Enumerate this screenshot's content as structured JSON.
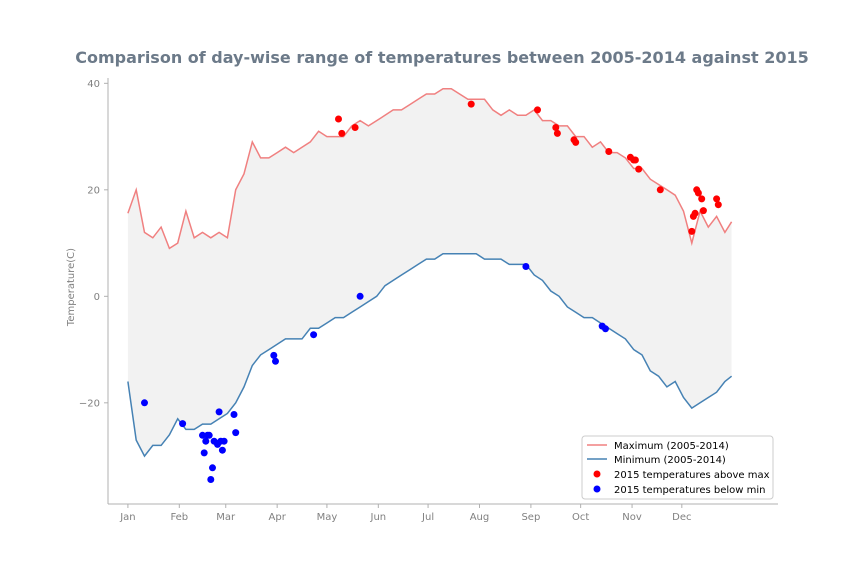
{
  "chart_data": {
    "type": "line",
    "title": "Comparison of day-wise range of temperatures between 2005-2014 against 2015",
    "xlabel": "",
    "ylabel": "Temperature(C)",
    "x_range_days": [
      -12,
      392
    ],
    "ylim": [
      -39,
      41
    ],
    "x_ticks": [
      {
        "label": "Jan",
        "day": 0
      },
      {
        "label": "Feb",
        "day": 31
      },
      {
        "label": "Mar",
        "day": 59
      },
      {
        "label": "Apr",
        "day": 90
      },
      {
        "label": "May",
        "day": 120
      },
      {
        "label": "Jun",
        "day": 151
      },
      {
        "label": "Jul",
        "day": 181
      },
      {
        "label": "Aug",
        "day": 212
      },
      {
        "label": "Sep",
        "day": 243
      },
      {
        "label": "Oct",
        "day": 273
      },
      {
        "label": "Nov",
        "day": 304
      },
      {
        "label": "Dec",
        "day": 334
      }
    ],
    "y_ticks": [
      -20,
      0,
      20,
      40
    ],
    "grid": false,
    "legend_position": "bottom-right",
    "colors": {
      "max": "#f08080",
      "min": "#4682b4",
      "fill": "#f2f2f2",
      "above": "#ff0000",
      "below": "#0000ff",
      "title": "#6c7a89"
    },
    "series": [
      {
        "name": "Maximum (2005-2014)",
        "kind": "line",
        "x": [
          0,
          5,
          10,
          15,
          20,
          25,
          30,
          35,
          40,
          45,
          50,
          55,
          60,
          65,
          70,
          75,
          80,
          85,
          90,
          95,
          100,
          105,
          110,
          115,
          120,
          125,
          130,
          135,
          140,
          145,
          150,
          155,
          160,
          165,
          170,
          175,
          180,
          185,
          190,
          195,
          200,
          205,
          210,
          215,
          220,
          225,
          230,
          235,
          240,
          245,
          250,
          255,
          260,
          265,
          270,
          275,
          280,
          285,
          290,
          295,
          300,
          305,
          310,
          315,
          320,
          325,
          330,
          335,
          340,
          345,
          350,
          355,
          360,
          364
        ],
        "y": [
          15.6,
          20,
          12,
          11,
          13,
          9,
          10,
          16,
          11,
          12,
          11,
          12,
          11,
          20,
          23,
          29,
          26,
          26,
          27,
          28,
          27,
          28,
          29,
          31,
          30,
          30,
          30,
          32,
          33,
          32,
          33,
          34,
          35,
          35,
          36,
          37,
          38,
          38,
          39,
          39,
          38,
          37,
          37,
          37,
          35,
          34,
          35,
          34,
          34,
          35,
          33,
          33,
          32,
          32,
          30,
          30,
          28,
          29,
          27,
          27,
          26,
          24,
          24,
          22,
          21,
          20,
          19,
          16,
          10,
          16,
          13,
          15,
          12,
          14
        ]
      },
      {
        "name": "Minimum (2005-2014)",
        "kind": "line",
        "x": [
          0,
          5,
          10,
          15,
          20,
          25,
          30,
          35,
          40,
          45,
          50,
          55,
          60,
          65,
          70,
          75,
          80,
          85,
          90,
          95,
          100,
          105,
          110,
          115,
          120,
          125,
          130,
          135,
          140,
          145,
          150,
          155,
          160,
          165,
          170,
          175,
          180,
          185,
          190,
          195,
          200,
          205,
          210,
          215,
          220,
          225,
          230,
          235,
          240,
          245,
          250,
          255,
          260,
          265,
          270,
          275,
          280,
          285,
          290,
          295,
          300,
          305,
          310,
          315,
          320,
          325,
          330,
          335,
          340,
          345,
          350,
          355,
          360,
          364
        ],
        "y": [
          -16,
          -27,
          -30,
          -28,
          -28,
          -26,
          -23,
          -25,
          -25,
          -24,
          -24,
          -23,
          -22,
          -20,
          -17,
          -13,
          -11,
          -10,
          -9,
          -8,
          -8,
          -8,
          -6,
          -6,
          -5,
          -4,
          -4,
          -3,
          -2,
          -1,
          0,
          2,
          3,
          4,
          5,
          6,
          7,
          7,
          8,
          8,
          8,
          8,
          8,
          7,
          7,
          7,
          6,
          6,
          6,
          4,
          3,
          1,
          0,
          -2,
          -3,
          -4,
          -4,
          -5,
          -6,
          -7,
          -8,
          -10,
          -11,
          -14,
          -15,
          -17,
          -16,
          -19,
          -21,
          -20,
          -19,
          -18,
          -16,
          -15
        ]
      },
      {
        "name": "2015 temperatures above max",
        "kind": "scatter",
        "x": [
          127,
          129,
          137,
          207,
          247,
          258,
          259,
          269,
          270,
          290,
          303,
          305,
          306,
          308,
          321,
          340,
          341,
          342,
          343,
          344,
          346,
          347,
          355,
          356
        ],
        "y": [
          33.3,
          30.6,
          31.7,
          36.1,
          35.0,
          31.7,
          30.6,
          29.4,
          28.9,
          27.2,
          26.1,
          25.6,
          25.6,
          23.9,
          20.0,
          12.2,
          15.0,
          15.6,
          20.0,
          19.4,
          18.3,
          16.1,
          18.3,
          17.2
        ]
      },
      {
        "name": "2015 temperatures below min",
        "kind": "scatter",
        "x": [
          10,
          33,
          45,
          46,
          47,
          48,
          49,
          50,
          51,
          52,
          54,
          55,
          56,
          57,
          58,
          64,
          65,
          88,
          89,
          112,
          140,
          240,
          286,
          288
        ],
        "y": [
          -20.0,
          -23.9,
          -26.1,
          -29.4,
          -27.2,
          -26.1,
          -26.1,
          -34.4,
          -32.2,
          -27.2,
          -27.8,
          -21.7,
          -27.2,
          -28.9,
          -27.2,
          -22.2,
          -25.6,
          -11.1,
          -12.2,
          -7.2,
          0.0,
          5.6,
          -5.6,
          -6.1
        ]
      }
    ]
  }
}
